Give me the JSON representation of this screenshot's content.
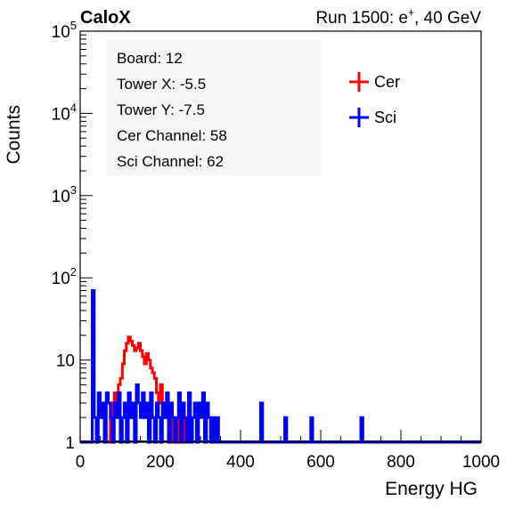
{
  "header": {
    "left": "CaloX",
    "right_prefix": "Run 1500: e",
    "right_sup": "+",
    "right_suffix": ", 40 GeV"
  },
  "info_box": {
    "lines": [
      "Board: 12",
      "Tower X: -5.5",
      "Tower Y: -7.5",
      "Cer Channel: 58",
      "Sci Channel: 62"
    ]
  },
  "chart_data": {
    "type": "line",
    "xlabel": "Energy HG",
    "ylabel": "Counts",
    "xlim": [
      0,
      1000
    ],
    "ylim": [
      1,
      100000
    ],
    "log_y": true,
    "grid": false,
    "legend_position": "top-right",
    "x_ticks": [
      "0",
      "200",
      "400",
      "600",
      "800",
      "1000"
    ],
    "y_ticks": [
      {
        "value": 1,
        "base": "1",
        "exp": ""
      },
      {
        "value": 10,
        "base": "10",
        "exp": ""
      },
      {
        "value": 100,
        "base": "10",
        "exp": "2"
      },
      {
        "value": 1000,
        "base": "10",
        "exp": "3"
      },
      {
        "value": 10000,
        "base": "10",
        "exp": "4"
      },
      {
        "value": 100000,
        "base": "10",
        "exp": "5"
      }
    ],
    "series": [
      {
        "name": "Cer",
        "color": "#ff0000",
        "x": [
          70,
          75,
          80,
          85,
          90,
          95,
          100,
          105,
          110,
          115,
          120,
          125,
          130,
          135,
          140,
          145,
          150,
          155,
          160,
          165,
          170,
          175,
          180,
          185,
          190,
          195,
          200,
          205,
          210,
          215,
          220,
          225,
          230,
          235,
          240,
          245,
          250,
          255,
          260,
          265,
          270
        ],
        "y": [
          1,
          2,
          3,
          4,
          3,
          5,
          6,
          9,
          13,
          16,
          19,
          17,
          15,
          13,
          14,
          16,
          13,
          11,
          9,
          12,
          10,
          8,
          7,
          6,
          4,
          3,
          5,
          3,
          2,
          3,
          2,
          1,
          2,
          1,
          1,
          2,
          1,
          1,
          2,
          1,
          1
        ]
      },
      {
        "name": "Sci",
        "color": "#0000ff",
        "x": [
          25,
          30,
          35,
          40,
          45,
          50,
          55,
          60,
          65,
          70,
          75,
          80,
          85,
          90,
          95,
          100,
          105,
          110,
          115,
          120,
          125,
          130,
          135,
          140,
          145,
          150,
          155,
          160,
          165,
          170,
          175,
          180,
          185,
          190,
          195,
          200,
          205,
          210,
          215,
          220,
          225,
          230,
          235,
          240,
          245,
          250,
          255,
          260,
          265,
          270,
          275,
          280,
          285,
          290,
          295,
          300,
          305,
          310,
          315,
          320,
          325,
          330,
          335,
          340,
          345,
          350,
          355,
          360,
          365,
          370,
          375,
          380,
          385,
          390,
          395,
          400,
          405,
          410,
          415,
          420,
          425,
          430,
          435,
          440,
          445,
          450,
          455,
          460,
          465,
          470,
          475,
          480,
          485,
          490,
          495,
          500,
          505,
          510,
          515,
          520,
          525,
          530,
          535,
          540,
          545,
          550,
          555,
          560,
          565,
          570,
          575,
          580,
          585,
          590,
          595,
          600,
          605,
          610,
          615,
          620,
          625,
          630,
          635,
          640,
          645,
          650,
          655,
          660,
          665,
          670,
          675,
          680,
          685,
          690,
          695,
          700,
          705
        ],
        "y": [
          1,
          70,
          2,
          1,
          4,
          2,
          3,
          1,
          4,
          3,
          2,
          1,
          3,
          2,
          4,
          1,
          2,
          3,
          1,
          4,
          2,
          3,
          1,
          5,
          3,
          2,
          4,
          2,
          3,
          1,
          4,
          2,
          1,
          3,
          2,
          1,
          3,
          2,
          4,
          1,
          3,
          2,
          1,
          2,
          4,
          1,
          3,
          2,
          1,
          4,
          1,
          2,
          3,
          1,
          3,
          2,
          4,
          1,
          3,
          2,
          1,
          2,
          1,
          2,
          1,
          1,
          1,
          1,
          1,
          1,
          1,
          1,
          1,
          1,
          1,
          1,
          1,
          1,
          1,
          1,
          1,
          1,
          1,
          1,
          1,
          3,
          1,
          1,
          1,
          1,
          1,
          1,
          1,
          1,
          1,
          1,
          1,
          2,
          1,
          1,
          1,
          1,
          1,
          1,
          1,
          1,
          1,
          1,
          1,
          1,
          2,
          1,
          1,
          1,
          1,
          1,
          1,
          1,
          1,
          1,
          1,
          1,
          1,
          1,
          1,
          1,
          1,
          1,
          1,
          1,
          1,
          1,
          1,
          1,
          1,
          2,
          1
        ]
      }
    ]
  }
}
